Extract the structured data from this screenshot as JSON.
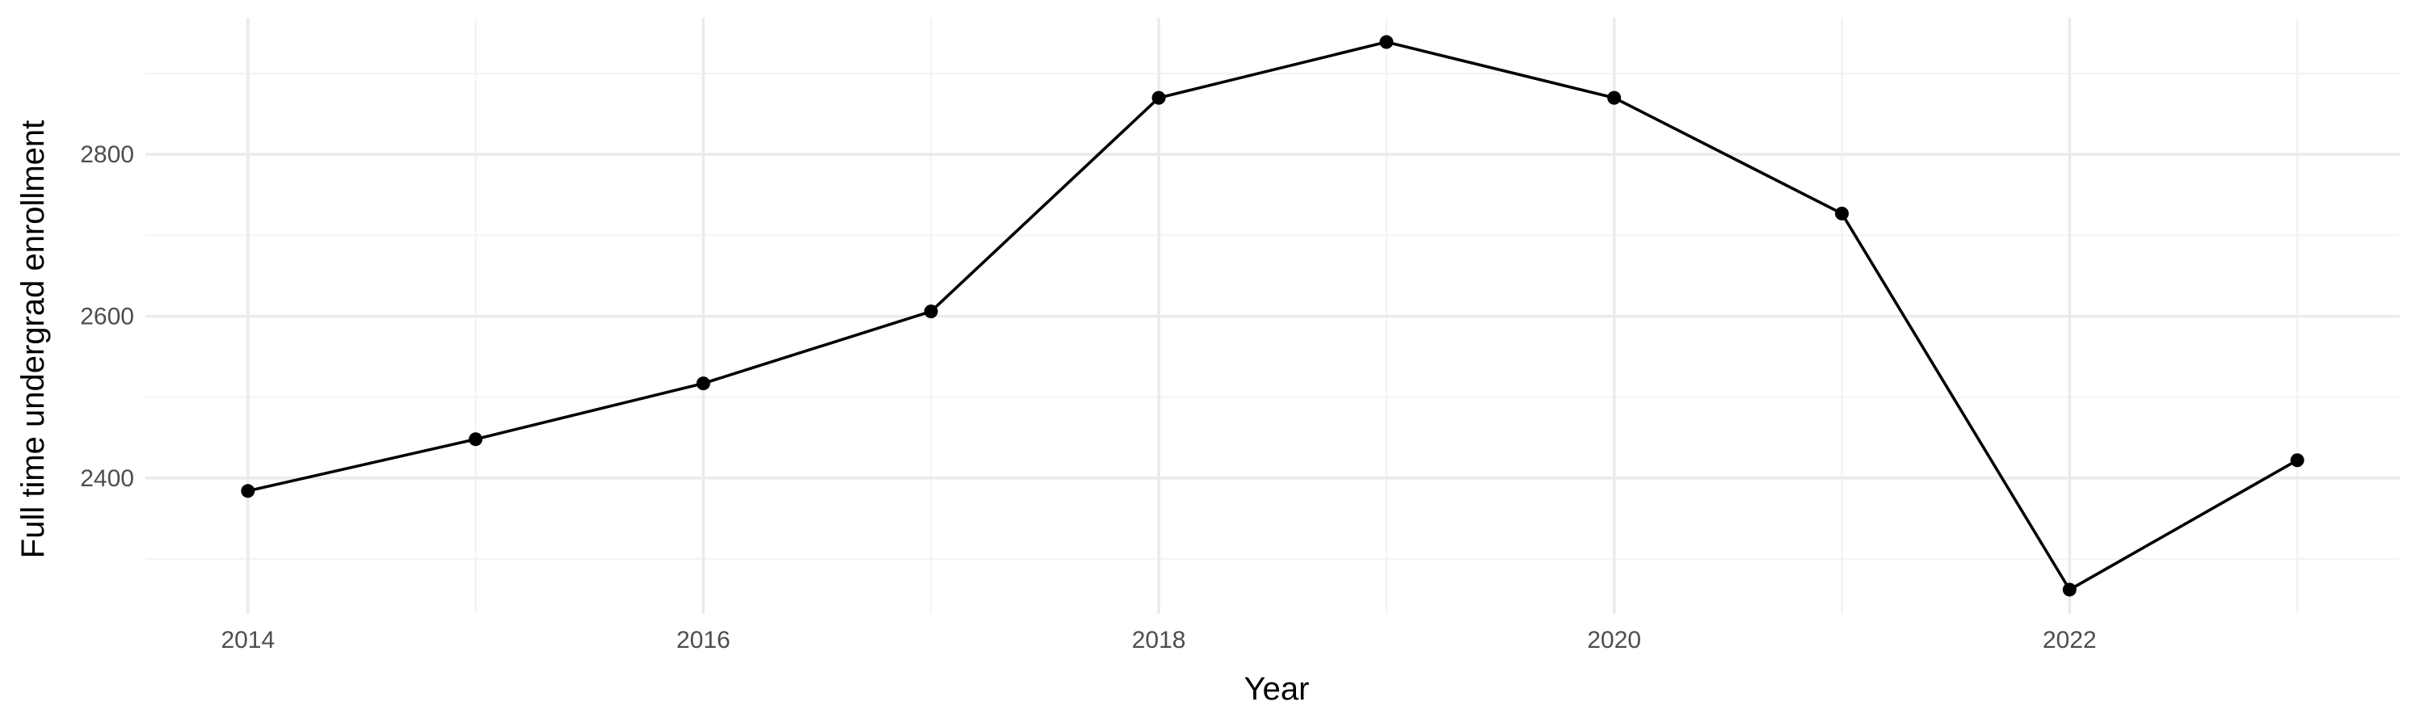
{
  "chart_data": {
    "type": "line",
    "xlabel": "Year",
    "ylabel": "Full time undergrad enrollment",
    "x": [
      2014,
      2015,
      2016,
      2017,
      2018,
      2019,
      2020,
      2021,
      2022,
      2023
    ],
    "series": [
      {
        "values": [
          2384,
          2448,
          2517,
          2606,
          2870,
          2939,
          2870,
          2727,
          2262,
          2422
        ]
      }
    ],
    "xlim": [
      2013.55,
      2023.45
    ],
    "ylim": [
      2232,
      2969
    ],
    "x_ticks": [
      2014,
      2016,
      2018,
      2020,
      2022
    ],
    "x_ticks_minor": [
      2015,
      2017,
      2019,
      2021,
      2023
    ],
    "y_ticks": [
      2400,
      2600,
      2800
    ],
    "y_ticks_minor": [
      2300,
      2500,
      2700,
      2900
    ],
    "grid": true,
    "legend": "none",
    "line_color": "#000000",
    "point_color": "#000000",
    "grid_color": "#ebebeb"
  }
}
